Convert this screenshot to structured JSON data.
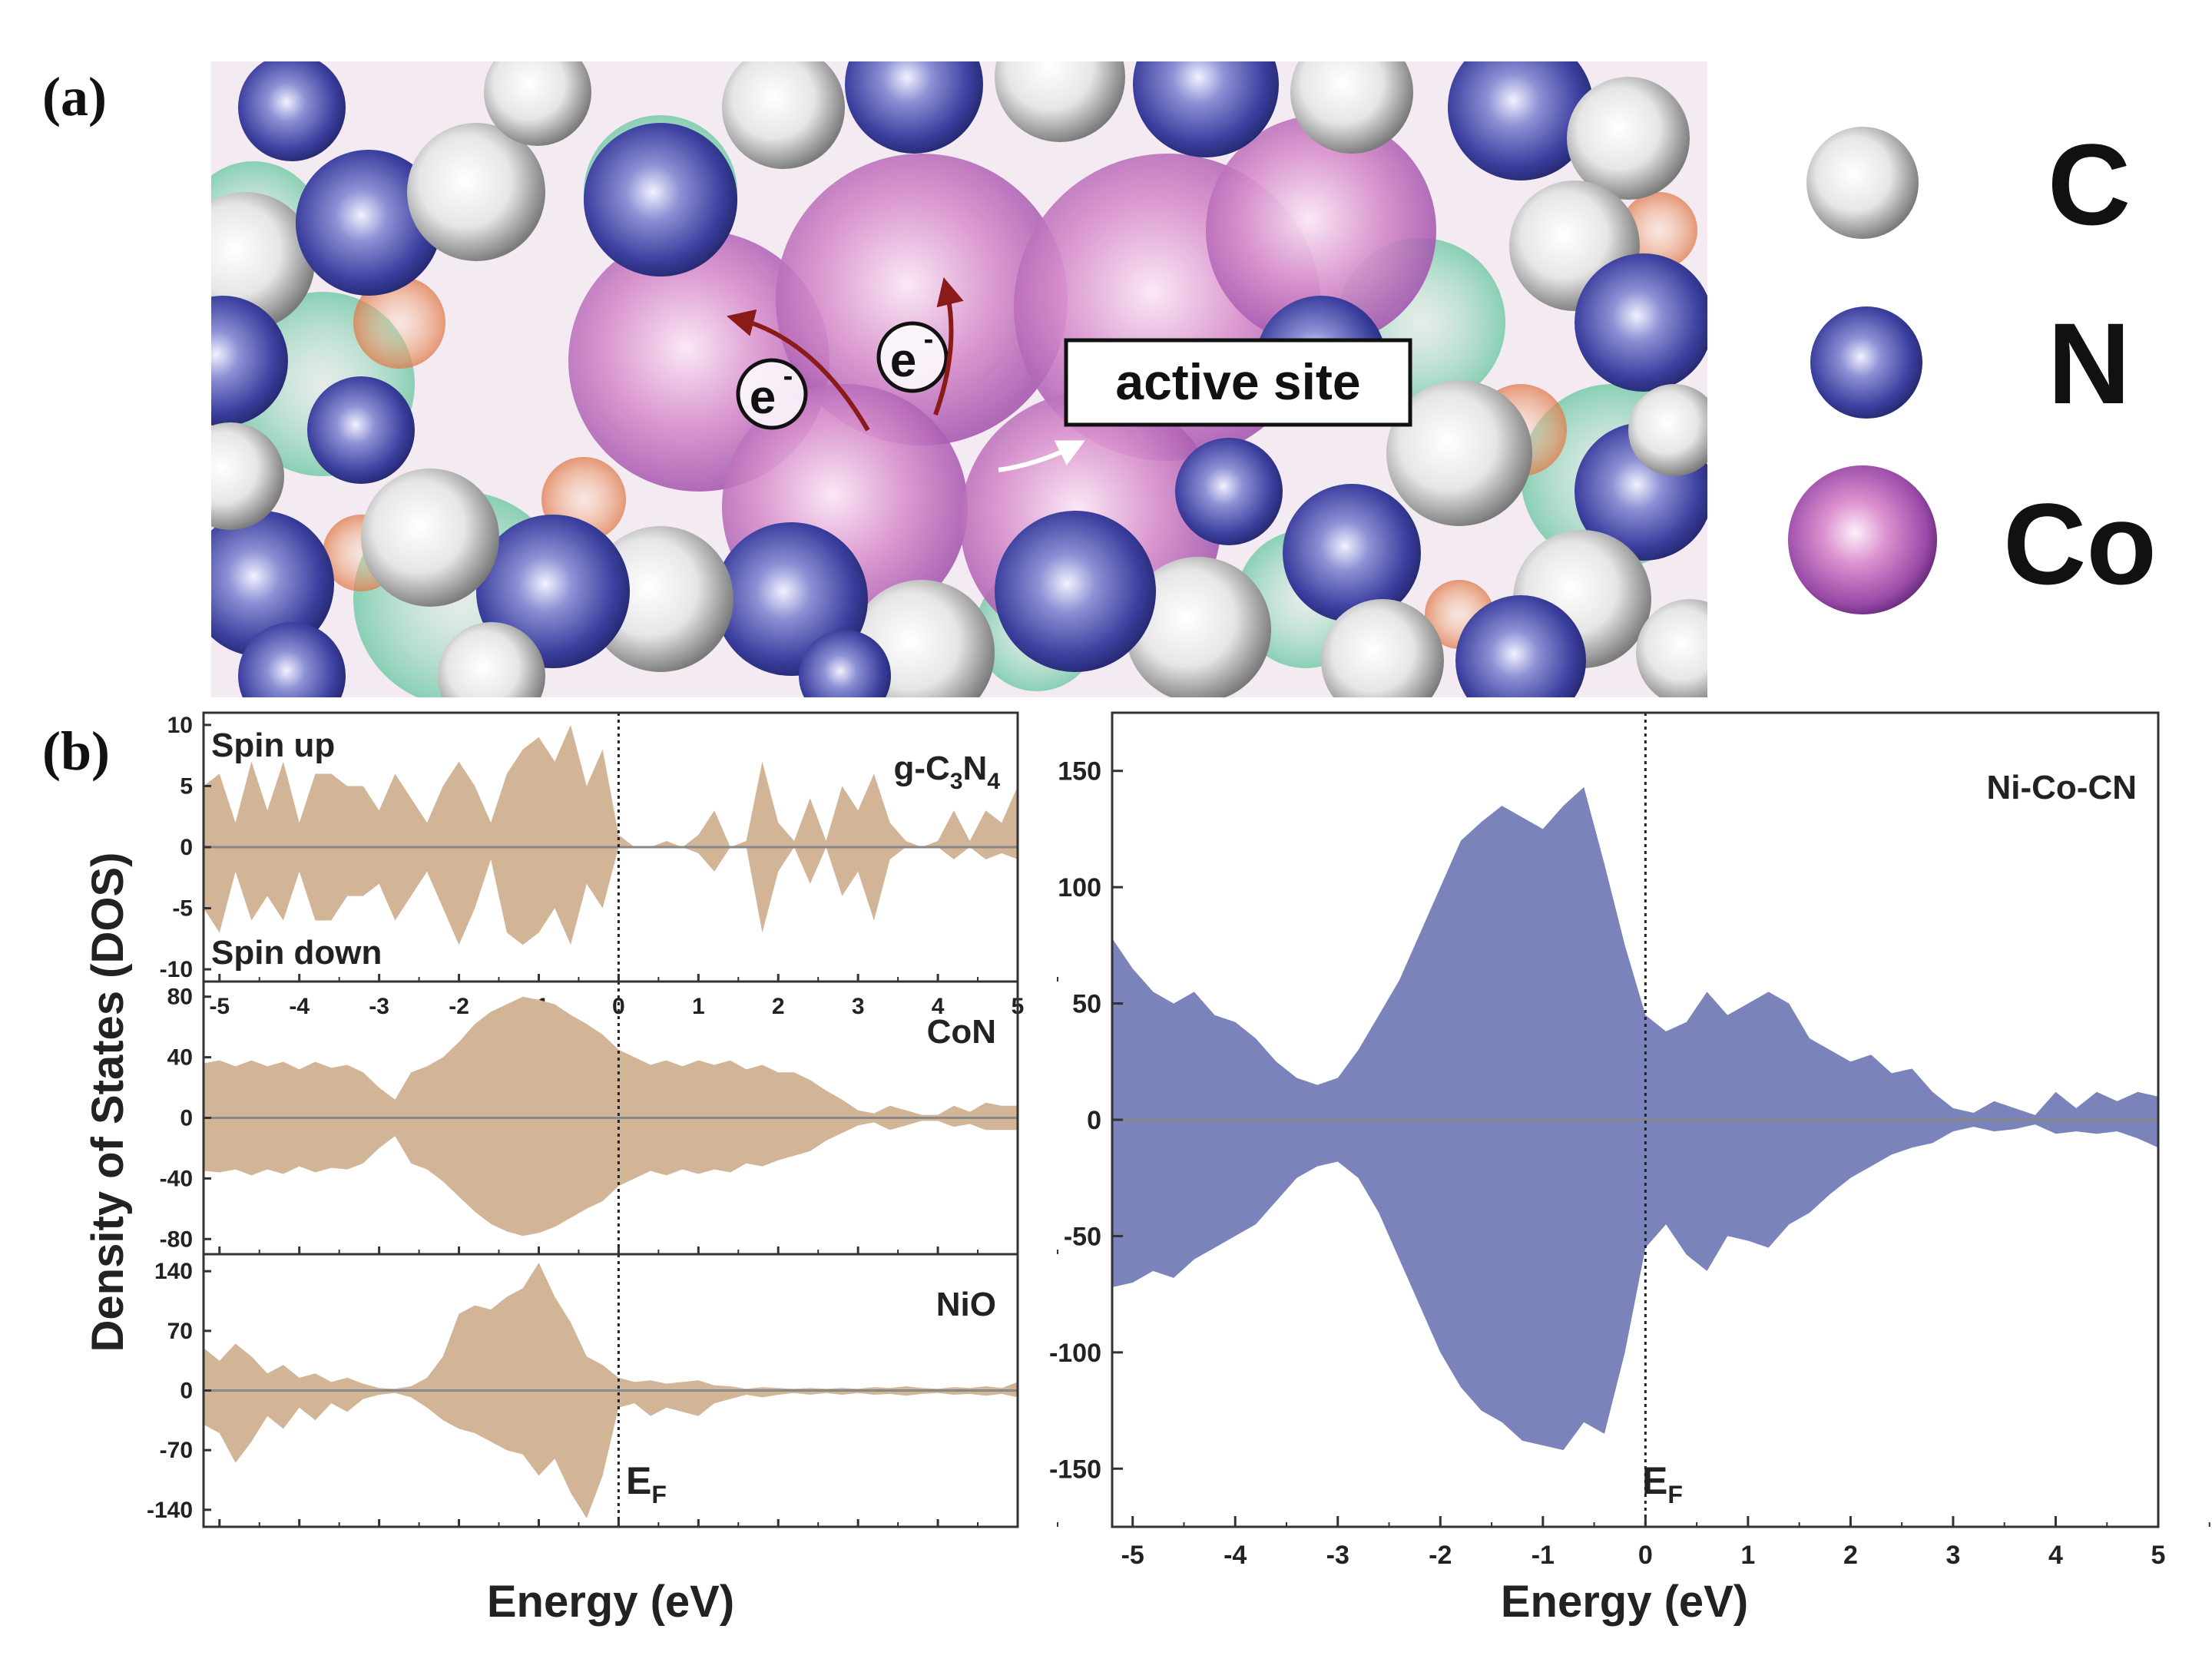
{
  "panel_a": {
    "label": "(a)",
    "annotation": "active site",
    "electron": "e",
    "electron_sup": "-",
    "legend": [
      {
        "symbol": "C",
        "color": "#c8c8c8"
      },
      {
        "symbol": "N",
        "color": "#3a3e9a"
      },
      {
        "symbol": "Co",
        "color": "#8a3a9e"
      }
    ]
  },
  "panel_b": {
    "label": "(b)",
    "ylabel": "Density of States (DOS)",
    "xlabel": "Energy (eV)",
    "ef_main": "E",
    "ef_sub": "F",
    "spin_up": "Spin up",
    "spin_down": "Spin down",
    "g_label_parts": [
      "g-C",
      "3",
      "N",
      "4"
    ]
  },
  "chart_data": [
    {
      "type": "area",
      "title": "g-C3N4",
      "xlabel": "Energy (eV)",
      "ylabel": "Density of States (DOS)",
      "xlim": [
        -5.2,
        5.0
      ],
      "ylim": [
        -11,
        11
      ],
      "yticks": [
        "10",
        "5",
        "0",
        "-5",
        "-10"
      ],
      "xticks": [
        "-5",
        "-4",
        "-3",
        "-2",
        "-1",
        "0",
        "1",
        "2",
        "3",
        "4",
        "5"
      ],
      "color": "#d2b497",
      "x": [
        -5.2,
        -5.0,
        -4.8,
        -4.6,
        -4.4,
        -4.2,
        -4.0,
        -3.8,
        -3.6,
        -3.4,
        -3.2,
        -3.0,
        -2.8,
        -2.6,
        -2.4,
        -2.2,
        -2.0,
        -1.8,
        -1.6,
        -1.4,
        -1.2,
        -1.0,
        -0.8,
        -0.6,
        -0.4,
        -0.2,
        0.0,
        0.2,
        0.4,
        0.6,
        0.8,
        1.0,
        1.2,
        1.4,
        1.6,
        1.8,
        2.0,
        2.2,
        2.4,
        2.6,
        2.8,
        3.0,
        3.2,
        3.4,
        3.6,
        3.8,
        4.0,
        4.2,
        4.4,
        4.6,
        4.8,
        5.0
      ],
      "spin_up": [
        5,
        6,
        2,
        7,
        3,
        7,
        2,
        6,
        6,
        5,
        5,
        3,
        6,
        4,
        2,
        5,
        7,
        5,
        2,
        6,
        8,
        9,
        7,
        10,
        5,
        8,
        1,
        0,
        0,
        0.5,
        0,
        1,
        3,
        0,
        0.5,
        7,
        2,
        0.5,
        4,
        0.5,
        5,
        3,
        6,
        2,
        0.5,
        0,
        0.5,
        3,
        0.5,
        3,
        2,
        5
      ],
      "spin_down": [
        -5,
        -7,
        -2,
        -6,
        -4,
        -6,
        -2,
        -6,
        -6,
        -4,
        -4,
        -3,
        -6,
        -4,
        -2,
        -5,
        -8,
        -5,
        -1,
        -7,
        -8,
        -7,
        -5,
        -8,
        -3,
        -5,
        0,
        0,
        0,
        0,
        0,
        -0.5,
        -2,
        0,
        0,
        -7,
        -2,
        0,
        -3,
        0,
        -4,
        -2,
        -6,
        -1,
        0,
        0,
        0,
        -1,
        0,
        -1,
        -0.5,
        -1
      ]
    },
    {
      "type": "area",
      "title": "CoN",
      "xlim": [
        -5.2,
        5.0
      ],
      "ylim": [
        -90,
        90
      ],
      "yticks": [
        "80",
        "40",
        "0",
        "-40",
        "-80"
      ],
      "color": "#d2b497",
      "x": [
        -5.2,
        -5.0,
        -4.8,
        -4.6,
        -4.4,
        -4.2,
        -4.0,
        -3.8,
        -3.6,
        -3.4,
        -3.2,
        -3.0,
        -2.8,
        -2.6,
        -2.4,
        -2.2,
        -2.0,
        -1.8,
        -1.6,
        -1.4,
        -1.2,
        -1.0,
        -0.8,
        -0.6,
        -0.4,
        -0.2,
        0.0,
        0.2,
        0.4,
        0.6,
        0.8,
        1.0,
        1.2,
        1.4,
        1.6,
        1.8,
        2.0,
        2.2,
        2.4,
        2.6,
        2.8,
        3.0,
        3.2,
        3.4,
        3.6,
        3.8,
        4.0,
        4.2,
        4.4,
        4.6,
        4.8,
        5.0
      ],
      "spin_up": [
        36,
        38,
        34,
        38,
        34,
        37,
        32,
        37,
        33,
        35,
        30,
        20,
        12,
        30,
        34,
        40,
        50,
        62,
        70,
        75,
        80,
        78,
        75,
        68,
        62,
        55,
        45,
        40,
        35,
        38,
        34,
        38,
        35,
        38,
        32,
        35,
        30,
        30,
        25,
        18,
        12,
        5,
        3,
        8,
        5,
        2,
        2,
        8,
        4,
        10,
        8,
        8
      ],
      "spin_down": [
        -35,
        -36,
        -34,
        -38,
        -34,
        -37,
        -32,
        -36,
        -33,
        -34,
        -30,
        -20,
        -12,
        -30,
        -34,
        -42,
        -52,
        -62,
        -70,
        -75,
        -78,
        -76,
        -72,
        -66,
        -60,
        -55,
        -45,
        -40,
        -35,
        -38,
        -34,
        -37,
        -34,
        -36,
        -30,
        -32,
        -28,
        -25,
        -22,
        -15,
        -10,
        -5,
        -3,
        -8,
        -5,
        -2,
        -2,
        -6,
        -4,
        -8,
        -8,
        -8
      ]
    },
    {
      "type": "area",
      "title": "NiO",
      "xlim": [
        -5.2,
        5.0
      ],
      "ylim": [
        -160,
        160
      ],
      "yticks": [
        "140",
        "70",
        "0",
        "-70",
        "-140"
      ],
      "color": "#d2b497",
      "x": [
        -5.2,
        -5.0,
        -4.8,
        -4.6,
        -4.4,
        -4.2,
        -4.0,
        -3.8,
        -3.6,
        -3.4,
        -3.2,
        -3.0,
        -2.8,
        -2.6,
        -2.4,
        -2.2,
        -2.0,
        -1.8,
        -1.6,
        -1.4,
        -1.2,
        -1.0,
        -0.8,
        -0.6,
        -0.4,
        -0.2,
        0.0,
        0.2,
        0.4,
        0.6,
        0.8,
        1.0,
        1.2,
        1.4,
        1.6,
        1.8,
        2.0,
        2.2,
        2.4,
        2.6,
        2.8,
        3.0,
        3.2,
        3.4,
        3.6,
        3.8,
        4.0,
        4.2,
        4.4,
        4.6,
        4.8,
        5.0
      ],
      "spin_up": [
        50,
        35,
        55,
        40,
        20,
        30,
        15,
        20,
        10,
        15,
        8,
        3,
        2,
        5,
        15,
        40,
        90,
        100,
        95,
        110,
        120,
        150,
        110,
        80,
        40,
        30,
        15,
        10,
        12,
        8,
        10,
        12,
        6,
        5,
        2,
        4,
        3,
        2,
        3,
        2,
        3,
        2,
        4,
        3,
        5,
        3,
        2,
        4,
        3,
        5,
        3,
        10
      ],
      "spin_down": [
        -40,
        -50,
        -85,
        -60,
        -30,
        -45,
        -20,
        -35,
        -15,
        -25,
        -10,
        -5,
        -3,
        -8,
        -20,
        -35,
        -45,
        -50,
        -60,
        -70,
        -75,
        -100,
        -80,
        -120,
        -150,
        -100,
        -20,
        -15,
        -30,
        -20,
        -25,
        -30,
        -15,
        -10,
        -5,
        -8,
        -5,
        -3,
        -5,
        -3,
        -5,
        -3,
        -5,
        -4,
        -6,
        -4,
        -3,
        -5,
        -4,
        -6,
        -4,
        -8
      ]
    },
    {
      "type": "area",
      "title": "Ni-Co-CN",
      "xlabel": "Energy (eV)",
      "xlim": [
        -5.2,
        5.0
      ],
      "ylim": [
        -175,
        175
      ],
      "yticks": [
        "150",
        "100",
        "50",
        "0",
        "-50",
        "-100",
        "-150"
      ],
      "xticks": [
        "-5",
        "-4",
        "-3",
        "-2",
        "-1",
        "0",
        "1",
        "2",
        "3",
        "4",
        "5"
      ],
      "color": "#7a84bb",
      "x": [
        -5.2,
        -5.0,
        -4.8,
        -4.6,
        -4.4,
        -4.2,
        -4.0,
        -3.8,
        -3.6,
        -3.4,
        -3.2,
        -3.0,
        -2.8,
        -2.6,
        -2.4,
        -2.2,
        -2.0,
        -1.8,
        -1.6,
        -1.4,
        -1.2,
        -1.0,
        -0.8,
        -0.6,
        -0.4,
        -0.2,
        0.0,
        0.2,
        0.4,
        0.6,
        0.8,
        1.0,
        1.2,
        1.4,
        1.6,
        1.8,
        2.0,
        2.2,
        2.4,
        2.6,
        2.8,
        3.0,
        3.2,
        3.4,
        3.6,
        3.8,
        4.0,
        4.2,
        4.4,
        4.6,
        4.8,
        5.0
      ],
      "spin_up": [
        78,
        65,
        55,
        50,
        55,
        45,
        42,
        35,
        25,
        18,
        15,
        18,
        30,
        45,
        60,
        80,
        100,
        120,
        128,
        135,
        130,
        125,
        135,
        143,
        110,
        75,
        45,
        38,
        42,
        55,
        45,
        50,
        55,
        50,
        35,
        30,
        25,
        28,
        20,
        22,
        12,
        5,
        3,
        8,
        5,
        2,
        12,
        5,
        12,
        8,
        12,
        10
      ],
      "spin_down": [
        -72,
        -70,
        -65,
        -68,
        -60,
        -55,
        -50,
        -45,
        -35,
        -25,
        -20,
        -18,
        -25,
        -40,
        -60,
        -80,
        -100,
        -115,
        -125,
        -130,
        -138,
        -140,
        -142,
        -130,
        -135,
        -100,
        -55,
        -45,
        -58,
        -65,
        -50,
        -52,
        -55,
        -45,
        -40,
        -32,
        -25,
        -20,
        -15,
        -12,
        -10,
        -5,
        -3,
        -5,
        -4,
        -2,
        -6,
        -5,
        -6,
        -5,
        -8,
        -12
      ]
    }
  ]
}
